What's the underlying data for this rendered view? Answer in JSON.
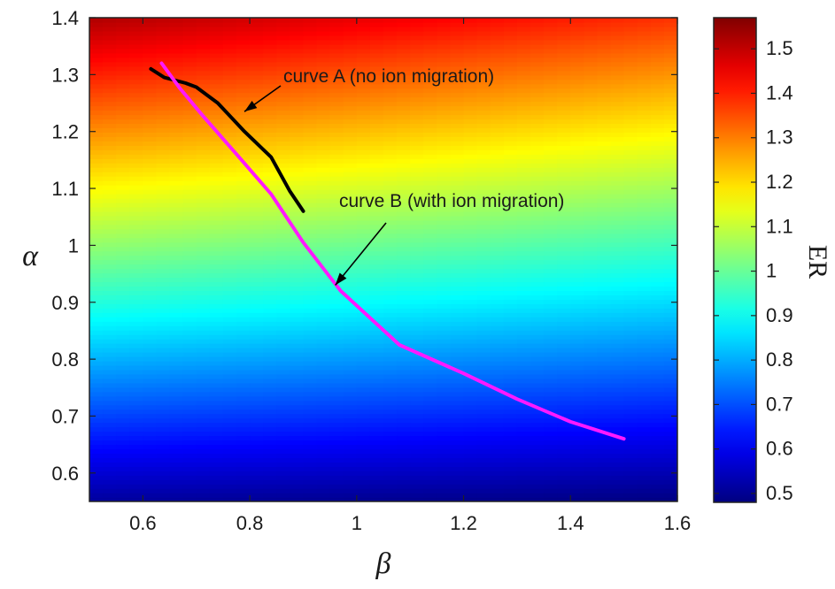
{
  "chart_data": {
    "type": "heatmap",
    "title": "",
    "xlabel": "β",
    "ylabel": "α",
    "xlim": [
      0.5,
      1.6
    ],
    "ylim": [
      0.55,
      1.4
    ],
    "x_ticks": [
      0.6,
      0.8,
      1,
      1.2,
      1.4,
      1.6
    ],
    "y_ticks": [
      0.6,
      0.7,
      0.8,
      0.9,
      1,
      1.1,
      1.2,
      1.3,
      1.4
    ],
    "x_tick_labels": [
      "0.6",
      "0.8",
      "1",
      "1.2",
      "1.4",
      "1.6"
    ],
    "y_tick_labels": [
      "0.6",
      "0.7",
      "0.8",
      "0.9",
      "1",
      "1.1",
      "1.2",
      "1.3",
      "1.4"
    ],
    "grid": false,
    "colorbar": {
      "label": "ER",
      "range": [
        0.48,
        1.57
      ],
      "colormap": "jet",
      "ticks": [
        0.5,
        0.6,
        0.7,
        0.8,
        0.9,
        1,
        1.1,
        1.2,
        1.3,
        1.4,
        1.5
      ],
      "tick_labels": [
        "0.5",
        "0.6",
        "0.7",
        "0.8",
        "0.9",
        "1",
        "1.1",
        "1.2",
        "1.3",
        "1.4",
        "1.5"
      ]
    },
    "field": {
      "description_of_gradient": "ER increases with alpha and slightly decreases with beta",
      "corner_values": {
        "bottom_left": 0.51,
        "bottom_right": 0.48,
        "top_left": 1.52,
        "top_right": 1.38
      }
    },
    "series": [
      {
        "name": "curve A",
        "color": "#000000",
        "x": [
          0.615,
          0.64,
          0.68,
          0.7,
          0.74,
          0.79,
          0.84,
          0.875,
          0.9
        ],
        "y": [
          1.31,
          1.295,
          1.285,
          1.278,
          1.25,
          1.2,
          1.155,
          1.095,
          1.06
        ]
      },
      {
        "name": "curve B",
        "color": "#ff19ff",
        "x": [
          0.635,
          0.67,
          0.71,
          0.78,
          0.84,
          0.9,
          0.97,
          1.08,
          1.2,
          1.3,
          1.4,
          1.5
        ],
        "y": [
          1.32,
          1.275,
          1.23,
          1.155,
          1.09,
          1.005,
          0.92,
          0.825,
          0.775,
          0.73,
          0.69,
          0.66
        ]
      }
    ],
    "annotations": [
      {
        "text": "curve A (no ion migration)",
        "arrow_to": [
          0.79,
          1.235
        ]
      },
      {
        "text": "curve B (with ion migration)",
        "arrow_to": [
          0.96,
          0.93
        ]
      }
    ]
  }
}
